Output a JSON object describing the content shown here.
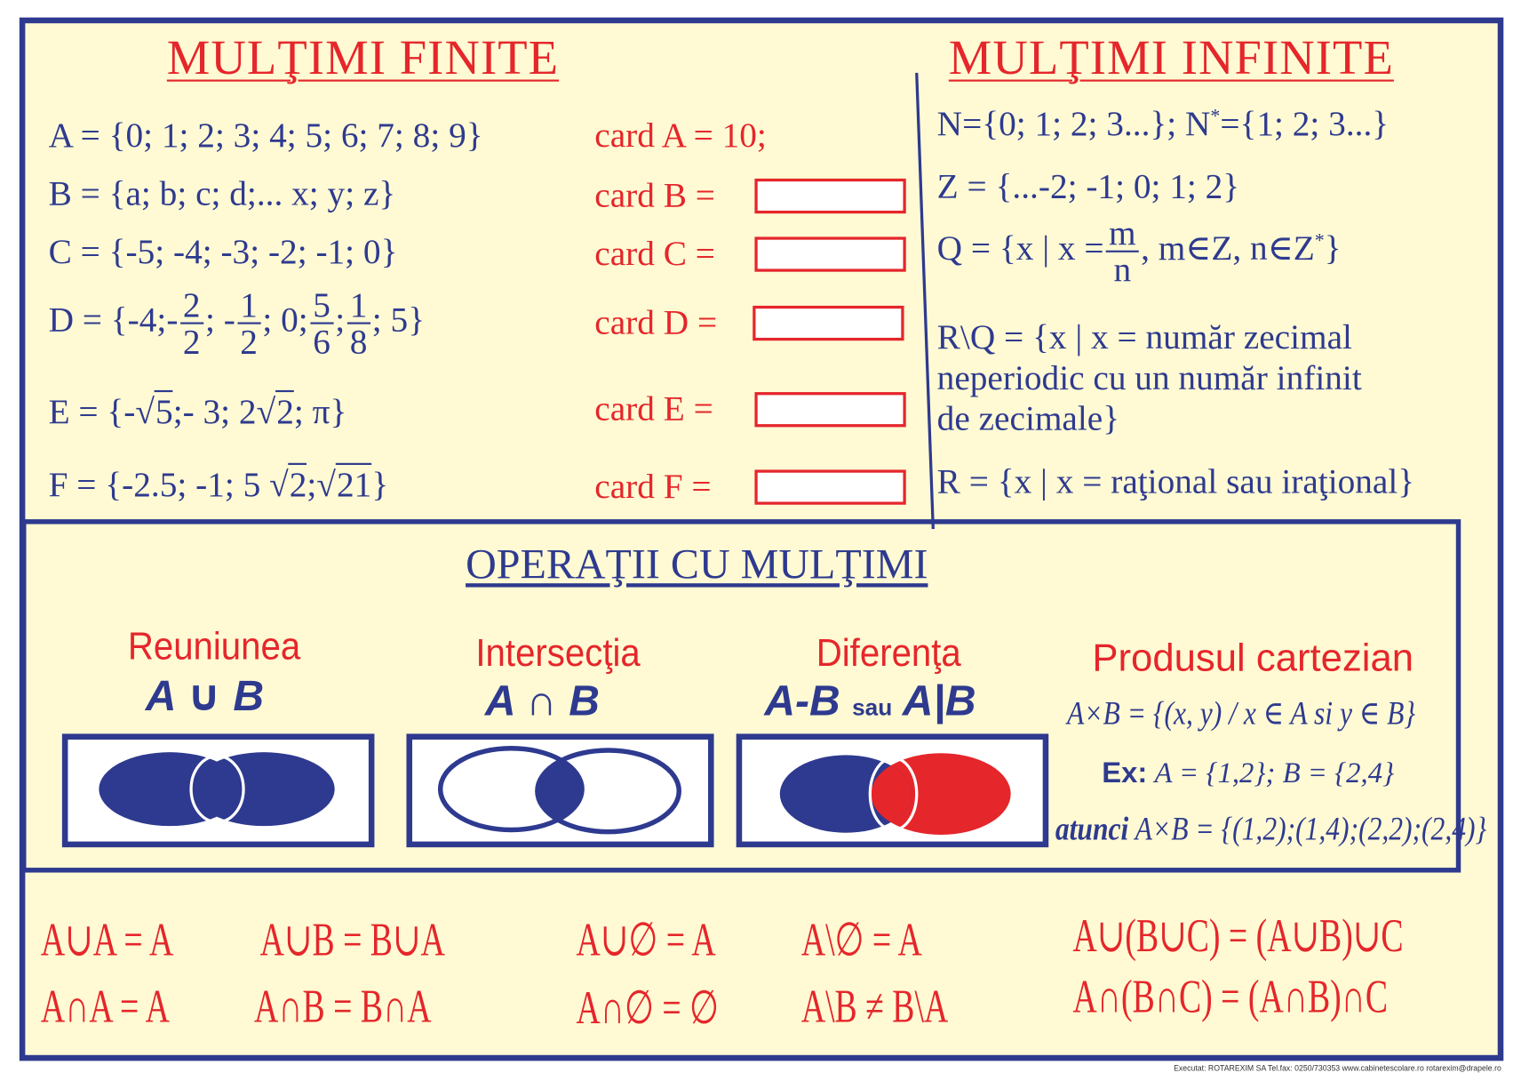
{
  "colors": {
    "blue": "#2e3a8f",
    "red": "#e5262b",
    "background": "#fffad3"
  },
  "finite": {
    "title": "MULŢIMI    FINITE",
    "rows": [
      {
        "set": "A = {0; 1; 2; 3; 4; 5; 6; 7; 8; 9}",
        "card": "card A = 10;"
      },
      {
        "set": "B = {a; b; c; d;... x; y; z}",
        "card": "card B ="
      },
      {
        "set": "C = {-5; -4; -3; -2; -1; 0}",
        "card": "card C ="
      },
      {
        "set_parts": [
          "D = {-4;-",
          "2",
          "2",
          "; -",
          "1",
          "2",
          "; 0;",
          "5",
          "6",
          ";",
          "1",
          "8",
          "; 5}"
        ],
        "card": "card D ="
      },
      {
        "set_parts": [
          "E = {-",
          "5",
          ";-   3; 2",
          "2",
          "; π}"
        ],
        "card": "card E ="
      },
      {
        "set_parts": [
          "F = {-2.5; -1; 5 ",
          "2",
          ";",
          "21",
          "}"
        ],
        "card": "card F ="
      }
    ]
  },
  "infinite": {
    "title": "MULŢIMI   INFINITE",
    "n": "N={0; 1; 2; 3...}; N",
    "n_star": "*",
    "n2": "={1; 2; 3...}",
    "z": "Z = {...-2; -1; 0; 1; 2}",
    "q_pre": "Q = {x | x =",
    "q_num": "m",
    "q_den": "n",
    "q_post": ", m∈Z, n∈Z",
    "q_star": "*",
    "q_end": "}",
    "rq": [
      "R\\Q = {x | x = număr zecimal",
      "neperiodic cu un număr infinit",
      "de zecimale}"
    ],
    "r": "R = {x | x = raţional sau iraţional}"
  },
  "operations": {
    "title": "OPERAŢII CU MULŢIMI",
    "union": {
      "name": "Reuniunea",
      "symbol": "A ∪ B"
    },
    "intersection": {
      "name": "Intersecţia",
      "symbol": "A ∩ B"
    },
    "difference": {
      "name": "Diferenţa",
      "symbol1": "A-B",
      "sau": "sau",
      "symbol2": "A|B"
    },
    "product": {
      "name": "Produsul cartezian",
      "definition": "A×B = {(x, y) / x ∈ A  si  y ∈ B}",
      "ex_label": "Ex:",
      "example": "A = {1,2};   B = {2,4}",
      "then_label": "atunci",
      "result": "A×B = {(1,2);(1,4);(2,2);(2,4)}"
    }
  },
  "laws": {
    "row1": [
      "A∪A = A",
      "A∪B = B∪A",
      "A∪∅ = A",
      "A\\∅ = A",
      "A∪(B∪C) = (A∪B)∪C"
    ],
    "row2": [
      "A∩A = A",
      "A∩B = B∩A",
      "A∩∅ = ∅",
      "A\\B ≠ B\\A",
      "A∩(B∩C) = (A∩B)∩C"
    ]
  },
  "footer": "Executat: ROTAREXIM SA  Tel.fax: 0250/730353   www.cabinetescolare.ro   rotarexim@drapele.ro"
}
